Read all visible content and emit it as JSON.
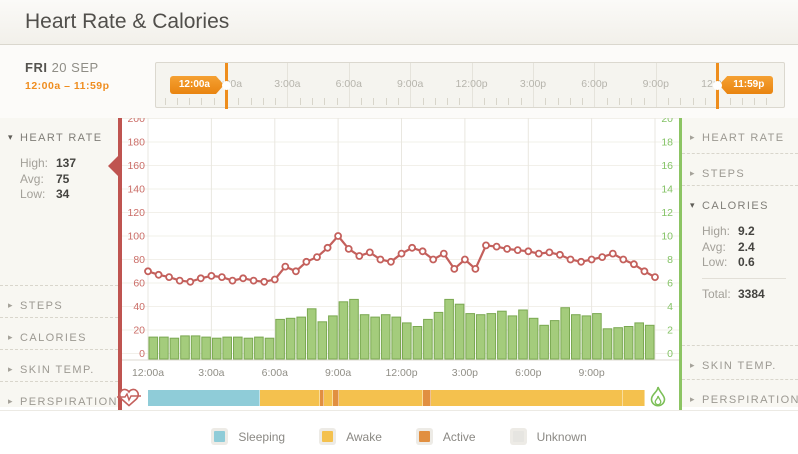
{
  "header": {
    "title": "Heart Rate & Calories"
  },
  "date_panel": {
    "day": "FRI",
    "date": "20 SEP",
    "time_range": "12:00a – 11:59p"
  },
  "timeline": {
    "tick_labels": [
      "12:00a",
      "3:00a",
      "6:00a",
      "9:00a",
      "12:00p",
      "3:00p",
      "6:00p",
      "9:00p",
      "12:00a"
    ],
    "start_handle": "12:00a",
    "end_handle": "11:59p"
  },
  "left_sidebar": {
    "items": [
      {
        "label": "HEART RATE",
        "expanded": true,
        "stats": [
          {
            "label": "High:",
            "value": "137"
          },
          {
            "label": "Avg:",
            "value": "75"
          },
          {
            "label": "Low:",
            "value": "34"
          }
        ]
      },
      {
        "label": "STEPS",
        "expanded": false
      },
      {
        "label": "CALORIES",
        "expanded": false
      },
      {
        "label": "SKIN TEMP.",
        "expanded": false
      },
      {
        "label": "PERSPIRATION",
        "expanded": false
      }
    ]
  },
  "right_sidebar": {
    "items": [
      {
        "label": "HEART RATE",
        "expanded": false
      },
      {
        "label": "STEPS",
        "expanded": false
      },
      {
        "label": "CALORIES",
        "expanded": true,
        "stats": [
          {
            "label": "High:",
            "value": "9.2"
          },
          {
            "label": "Avg:",
            "value": "2.4"
          },
          {
            "label": "Low:",
            "value": "0.6"
          }
        ],
        "total": {
          "label": "Total:",
          "value": "3384"
        }
      },
      {
        "label": "SKIN TEMP.",
        "expanded": false
      },
      {
        "label": "PERSPIRATION",
        "expanded": false
      }
    ]
  },
  "chart_data": {
    "type": "line+bar",
    "x_labels": [
      "12:00a",
      "3:00a",
      "6:00a",
      "9:00a",
      "12:00p",
      "3:00p",
      "6:00p",
      "9:00p"
    ],
    "interval_minutes": 30,
    "left_axis": {
      "name": "heart-rate-bpm",
      "min": 0,
      "max": 200,
      "step": 20,
      "ticks": [
        0,
        20,
        40,
        60,
        80,
        100,
        120,
        140,
        160,
        180,
        200
      ],
      "color": "#c4605c"
    },
    "right_axis": {
      "name": "calories-per-min",
      "min": 0,
      "max": 20,
      "step": 2,
      "ticks": [
        0,
        2,
        4,
        6,
        8,
        10,
        12,
        14,
        16,
        18,
        20
      ],
      "color": "#84c366"
    },
    "series": [
      {
        "name": "Heart Rate",
        "type": "line",
        "axis": "left",
        "color": "#c4605c",
        "values": [
          70,
          67,
          65,
          62,
          61,
          64,
          66,
          65,
          62,
          64,
          62,
          61,
          63,
          74,
          70,
          78,
          82,
          90,
          100,
          89,
          83,
          86,
          80,
          78,
          85,
          90,
          87,
          80,
          85,
          72,
          80,
          72,
          92,
          91,
          89,
          88,
          87,
          85,
          86,
          84,
          80,
          78,
          80,
          82,
          85,
          80,
          76,
          70,
          65
        ]
      },
      {
        "name": "Calories",
        "type": "bar",
        "axis": "right",
        "color": "#a4cc7c",
        "border_color": "#7aa851",
        "values": [
          1.4,
          1.4,
          1.3,
          1.5,
          1.5,
          1.4,
          1.3,
          1.4,
          1.4,
          1.3,
          1.4,
          1.3,
          2.9,
          3.0,
          3.1,
          3.8,
          2.7,
          3.2,
          4.4,
          4.6,
          3.3,
          3.1,
          3.3,
          3.1,
          2.6,
          2.3,
          2.9,
          3.5,
          4.6,
          4.2,
          3.4,
          3.3,
          3.4,
          3.6,
          3.2,
          3.7,
          3.0,
          2.4,
          2.8,
          3.9,
          3.3,
          3.2,
          3.4,
          2.1,
          2.2,
          2.3,
          2.6,
          2.4
        ]
      }
    ]
  },
  "activity_band": {
    "segments": [
      {
        "state": "Sleeping",
        "start_min": 0,
        "end_min": 325
      },
      {
        "state": "Awake",
        "start_min": 325,
        "end_min": 497
      },
      {
        "state": "Active",
        "start_min": 497,
        "end_min": 511
      },
      {
        "state": "Awake",
        "start_min": 511,
        "end_min": 537
      },
      {
        "state": "Active",
        "start_min": 537,
        "end_min": 554
      },
      {
        "state": "Awake",
        "start_min": 554,
        "end_min": 795
      },
      {
        "state": "Active",
        "start_min": 795,
        "end_min": 820
      },
      {
        "state": "Awake",
        "start_min": 820,
        "end_min": 1375
      },
      {
        "state": "Awake",
        "start_min": 1375,
        "end_min": 1439
      }
    ]
  },
  "legend": [
    {
      "label": "Sleeping",
      "color": "#8fccd8"
    },
    {
      "label": "Awake",
      "color": "#f4c14e"
    },
    {
      "label": "Active",
      "color": "#e18f41"
    },
    {
      "label": "Unknown",
      "color": "#e6e5e1"
    }
  ],
  "colors": {
    "accent_orange": "#ef8d1f",
    "hr_red": "#c4605c",
    "cal_green": "#8cc463",
    "sleeping": "#8fccd8",
    "awake": "#f4c14e",
    "active": "#e18f41",
    "unknown": "#e6e5e1"
  }
}
